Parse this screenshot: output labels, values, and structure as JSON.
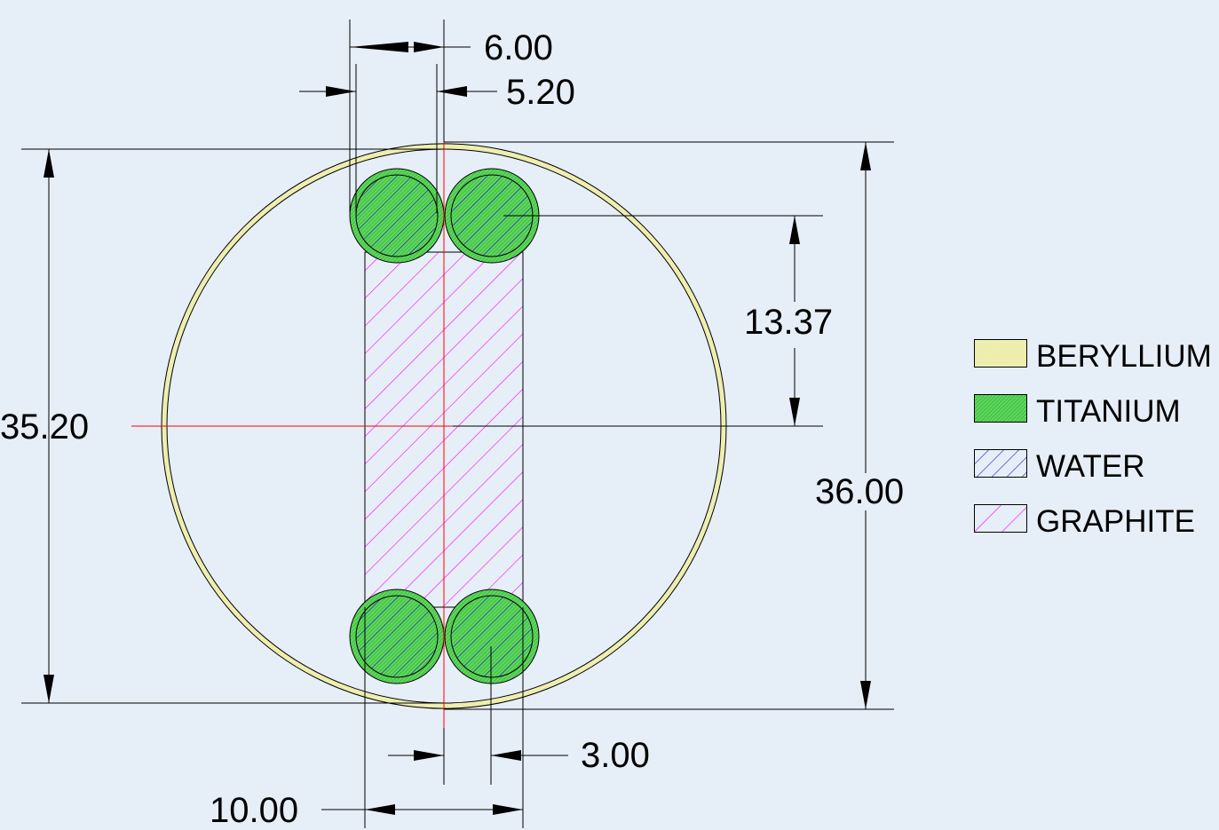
{
  "dimensions": {
    "d_600": "6.00",
    "d_520": "5.20",
    "d_3520": "35.20",
    "d_3600": "36.00",
    "d_1337": "13.37",
    "d_300": "3.00",
    "d_1000": "10.00"
  },
  "legend": [
    {
      "label": "BERYLLIUM",
      "material": "beryllium",
      "fill": "#f0f0b4",
      "hatch": "#e3e39a"
    },
    {
      "label": "TITANIUM",
      "material": "titanium",
      "fill": "#5ed65e",
      "hatch": "#2aa52a"
    },
    {
      "label": "WATER",
      "material": "water",
      "fill": "#e6eef7",
      "hatch": "#1010c8"
    },
    {
      "label": "GRAPHITE",
      "material": "graphite",
      "fill": "#e6eef7",
      "hatch": "#ff00ff"
    }
  ],
  "colors": {
    "background": "#e6eef7",
    "dimension_line": "#000000",
    "center_line": "#ff0000"
  }
}
